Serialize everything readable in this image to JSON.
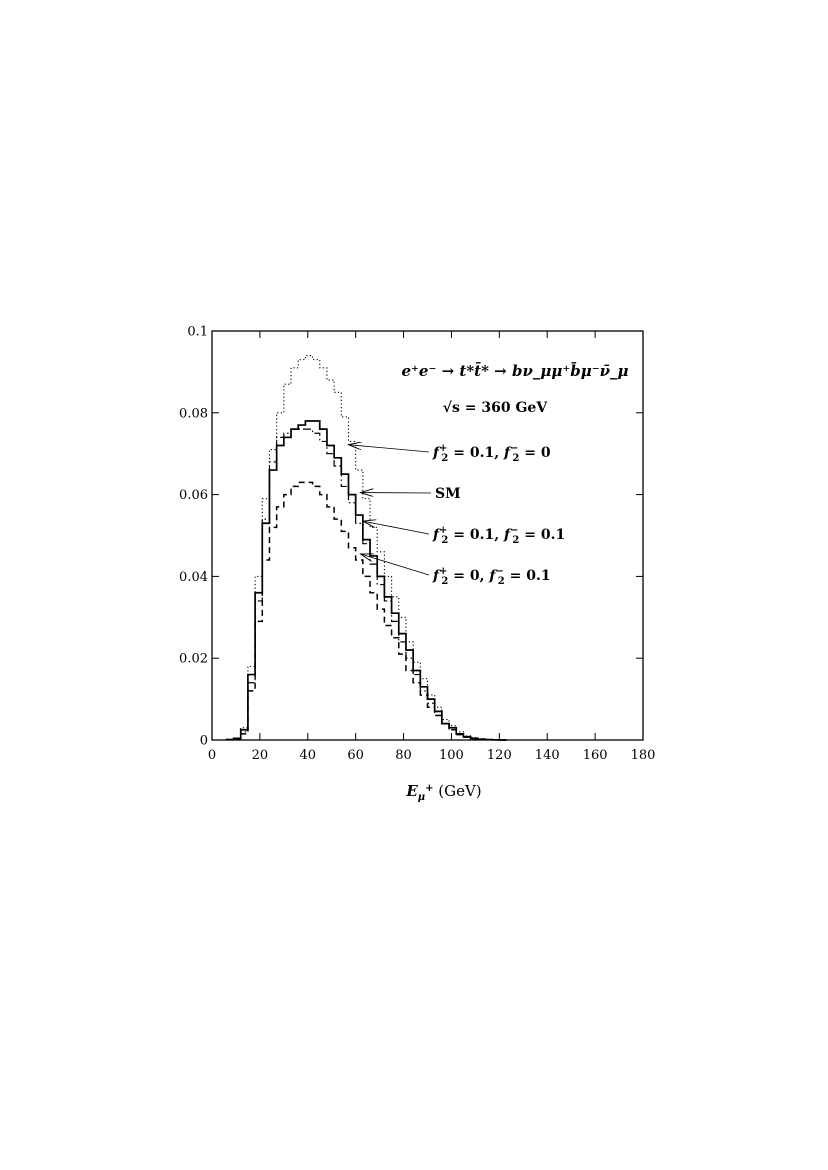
{
  "chart_data": {
    "type": "line",
    "drawstyle": "steps",
    "xlim": [
      0,
      180
    ],
    "ylim": [
      0,
      0.1
    ],
    "xticks": [
      "0",
      "20",
      "40",
      "60",
      "80",
      "100",
      "120",
      "140",
      "160",
      "180"
    ],
    "yticks": [
      "0",
      "0.02",
      "0.04",
      "0.06",
      "0.08",
      "0.1"
    ],
    "xlabel": {
      "base": "E",
      "sub": "μ",
      "sup": "+",
      "unit": " (GeV)"
    },
    "ylabel": "",
    "title": "",
    "grid": false,
    "annotations": {
      "process": "e⁺e⁻ → t*t̄* → bν_μμ⁺b̄μ⁻ν̄_μ",
      "energy": "√s = 360 GeV"
    },
    "bin_width": 3,
    "x_edges_start": 6,
    "series": [
      {
        "key": "f2p01",
        "name": "f2+ = 0.1, f2− = 0",
        "style": "dotted",
        "values": [
          0.0001,
          0.0004,
          0.003,
          0.018,
          0.04,
          0.059,
          0.071,
          0.08,
          0.087,
          0.091,
          0.093,
          0.094,
          0.093,
          0.091,
          0.088,
          0.085,
          0.079,
          0.073,
          0.066,
          0.059,
          0.052,
          0.046,
          0.04,
          0.035,
          0.03,
          0.024,
          0.019,
          0.015,
          0.011,
          0.008,
          0.005,
          0.0035,
          0.002,
          0.001,
          0.0006,
          0.0003,
          0.0001,
          5e-05,
          0.0
        ]
      },
      {
        "key": "sm",
        "name": "SM",
        "style": "solid",
        "values": [
          0.0001,
          0.0004,
          0.0025,
          0.016,
          0.036,
          0.053,
          0.066,
          0.072,
          0.074,
          0.076,
          0.077,
          0.078,
          0.078,
          0.076,
          0.072,
          0.069,
          0.065,
          0.06,
          0.055,
          0.049,
          0.045,
          0.04,
          0.035,
          0.031,
          0.026,
          0.022,
          0.017,
          0.013,
          0.01,
          0.007,
          0.004,
          0.003,
          0.0015,
          0.0008,
          0.0004,
          0.0002,
          0.0001,
          5e-05,
          0.0
        ]
      },
      {
        "key": "f2p01m01",
        "name": "f2+ = 0.1, f2− = 0.1",
        "style": "dashdot",
        "values": [
          0.0001,
          0.0003,
          0.002,
          0.014,
          0.034,
          0.054,
          0.068,
          0.074,
          0.075,
          0.076,
          0.076,
          0.076,
          0.075,
          0.073,
          0.07,
          0.067,
          0.062,
          0.058,
          0.053,
          0.048,
          0.043,
          0.038,
          0.034,
          0.029,
          0.024,
          0.02,
          0.016,
          0.012,
          0.009,
          0.006,
          0.004,
          0.0025,
          0.0013,
          0.0007,
          0.0003,
          0.0002,
          0.0001,
          5e-05,
          0.0
        ]
      },
      {
        "key": "f2m01",
        "name": "f2+ = 0, f2− = 0.1",
        "style": "dashed",
        "values": [
          0.0001,
          0.0003,
          0.0015,
          0.012,
          0.029,
          0.044,
          0.052,
          0.057,
          0.06,
          0.062,
          0.063,
          0.063,
          0.062,
          0.06,
          0.057,
          0.054,
          0.051,
          0.047,
          0.044,
          0.04,
          0.036,
          0.032,
          0.028,
          0.025,
          0.021,
          0.017,
          0.014,
          0.011,
          0.008,
          0.006,
          0.004,
          0.0025,
          0.0013,
          0.0007,
          0.0003,
          0.0002,
          0.0001,
          5e-05,
          0.0
        ]
      }
    ],
    "legend": [
      {
        "key": "f2p01",
        "label": {
          "a": "= 0.1, ",
          "b": "= 0"
        },
        "arrow_x": 57,
        "arrow_y": 0.0722
      },
      {
        "key": "sm",
        "label": {
          "text": "SM"
        },
        "arrow_x": 62,
        "arrow_y": 0.0605
      },
      {
        "key": "f2p01m01",
        "label": {
          "a": "= 0.1, ",
          "b": "= 0.1"
        },
        "arrow_x": 63,
        "arrow_y": 0.0535
      },
      {
        "key": "f2m01",
        "label": {
          "a": "= 0, ",
          "b": "= 0.1"
        },
        "arrow_x": 62,
        "arrow_y": 0.0455
      }
    ],
    "legend_symbol": {
      "base": "f",
      "sub": "2",
      "plus": "+",
      "minus": "−"
    }
  }
}
